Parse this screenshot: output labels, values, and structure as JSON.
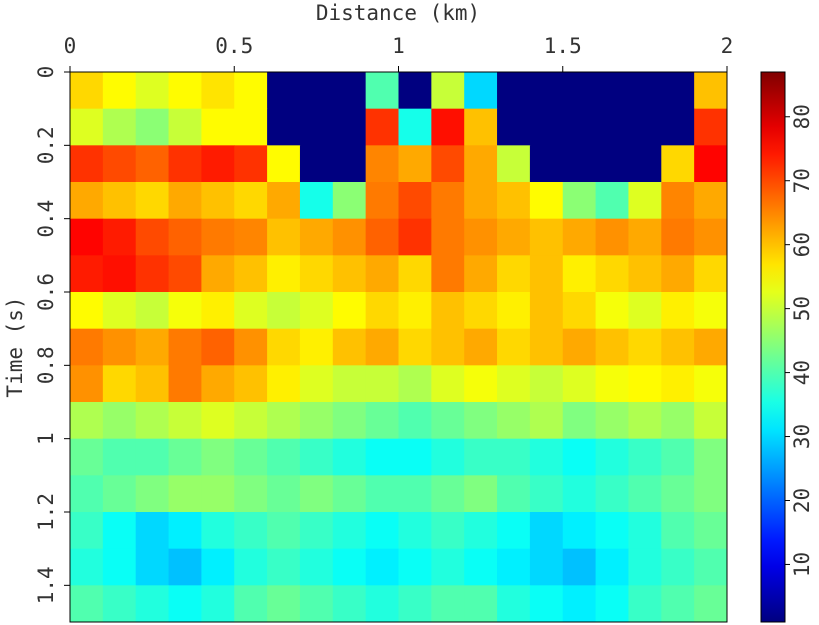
{
  "chart_data": {
    "type": "heatmap",
    "x_label": "Distance (km)",
    "y_label": "Time (s)",
    "xlim": [
      0,
      2
    ],
    "xticks": [
      0,
      0.5,
      1,
      1.5,
      2
    ],
    "ylim": [
      0,
      1.5
    ],
    "yticks": [
      0,
      0.2,
      0.4,
      0.6,
      0.8,
      1,
      1.2,
      1.4
    ],
    "colormap": "jet",
    "clim": [
      1,
      87
    ],
    "colorbar_ticks": [
      10,
      20,
      30,
      40,
      50,
      60,
      70,
      80
    ],
    "x": [
      0.05,
      0.15,
      0.25,
      0.35,
      0.45,
      0.55,
      0.65,
      0.75,
      0.85,
      0.95,
      1.05,
      1.15,
      1.25,
      1.35,
      1.45,
      1.55,
      1.65,
      1.75,
      1.85,
      1.95
    ],
    "y": [
      0.05,
      0.15,
      0.25,
      0.35,
      0.45,
      0.55,
      0.65,
      0.75,
      0.85,
      0.95,
      1.05,
      1.15,
      1.25,
      1.35,
      1.45
    ],
    "z": [
      [
        58,
        55,
        52,
        55,
        57,
        55,
        1,
        1,
        1,
        40,
        1,
        50,
        30,
        1,
        1,
        1,
        1,
        1,
        1,
        60
      ],
      [
        52,
        48,
        45,
        50,
        55,
        55,
        1,
        1,
        1,
        72,
        35,
        75,
        60,
        1,
        1,
        1,
        1,
        1,
        1,
        72
      ],
      [
        72,
        70,
        68,
        72,
        74,
        72,
        55,
        1,
        1,
        65,
        62,
        70,
        62,
        50,
        1,
        1,
        1,
        1,
        58,
        76
      ],
      [
        62,
        60,
        58,
        62,
        60,
        58,
        62,
        35,
        45,
        66,
        70,
        66,
        62,
        60,
        55,
        45,
        40,
        52,
        65,
        62
      ],
      [
        76,
        74,
        70,
        68,
        66,
        65,
        60,
        62,
        64,
        68,
        72,
        66,
        64,
        62,
        60,
        62,
        64,
        62,
        66,
        64
      ],
      [
        74,
        75,
        72,
        70,
        62,
        60,
        56,
        58,
        60,
        62,
        58,
        66,
        62,
        58,
        60,
        56,
        58,
        60,
        62,
        58
      ],
      [
        55,
        52,
        50,
        54,
        56,
        52,
        50,
        52,
        55,
        58,
        56,
        60,
        58,
        56,
        60,
        58,
        54,
        52,
        56,
        54
      ],
      [
        66,
        64,
        62,
        66,
        68,
        64,
        58,
        56,
        60,
        62,
        58,
        60,
        62,
        58,
        60,
        62,
        60,
        58,
        60,
        62
      ],
      [
        64,
        58,
        60,
        66,
        62,
        60,
        56,
        52,
        50,
        50,
        48,
        52,
        54,
        52,
        50,
        52,
        54,
        55,
        56,
        54
      ],
      [
        48,
        46,
        48,
        50,
        52,
        50,
        48,
        46,
        44,
        42,
        40,
        42,
        44,
        46,
        48,
        44,
        46,
        48,
        46,
        50
      ],
      [
        42,
        40,
        40,
        42,
        44,
        42,
        40,
        38,
        36,
        34,
        34,
        36,
        38,
        38,
        36,
        34,
        36,
        38,
        40,
        44
      ],
      [
        40,
        42,
        44,
        46,
        46,
        44,
        42,
        44,
        42,
        40,
        40,
        42,
        44,
        40,
        38,
        36,
        38,
        40,
        42,
        44
      ],
      [
        38,
        34,
        30,
        32,
        36,
        38,
        40,
        38,
        36,
        34,
        36,
        38,
        36,
        34,
        30,
        32,
        34,
        36,
        40,
        42
      ],
      [
        36,
        34,
        30,
        28,
        32,
        36,
        38,
        36,
        34,
        32,
        34,
        36,
        34,
        32,
        30,
        28,
        32,
        36,
        38,
        40
      ],
      [
        40,
        38,
        36,
        34,
        36,
        40,
        42,
        40,
        38,
        36,
        38,
        40,
        40,
        36,
        34,
        32,
        34,
        38,
        40,
        42
      ]
    ]
  }
}
